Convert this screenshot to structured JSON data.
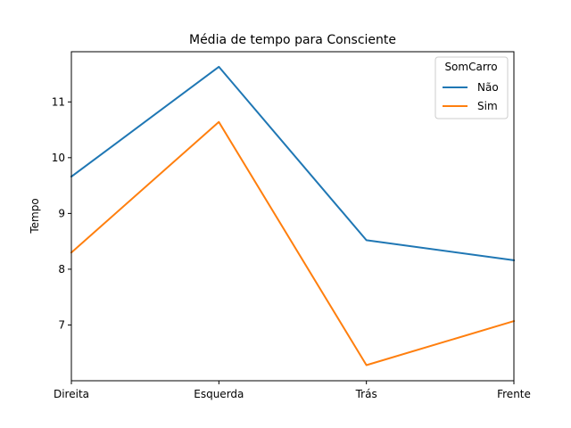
{
  "chart_data": {
    "type": "line",
    "title": "Média de tempo para Consciente",
    "xlabel": "",
    "ylabel": "Tempo",
    "categories": [
      "Direita",
      "Esquerda",
      "Trás",
      "Frente"
    ],
    "series": [
      {
        "name": "Não",
        "values": [
          9.66,
          11.63,
          8.52,
          8.16
        ],
        "color": "#1f77b4"
      },
      {
        "name": "Sim",
        "values": [
          8.3,
          10.64,
          6.28,
          7.07
        ],
        "color": "#ff7f0e"
      }
    ],
    "ylim": [
      6.0,
      11.9
    ],
    "yticks": [
      7,
      8,
      9,
      10,
      11
    ],
    "legend": {
      "title": "SomCarro",
      "position": "top-right"
    },
    "grid": false
  }
}
